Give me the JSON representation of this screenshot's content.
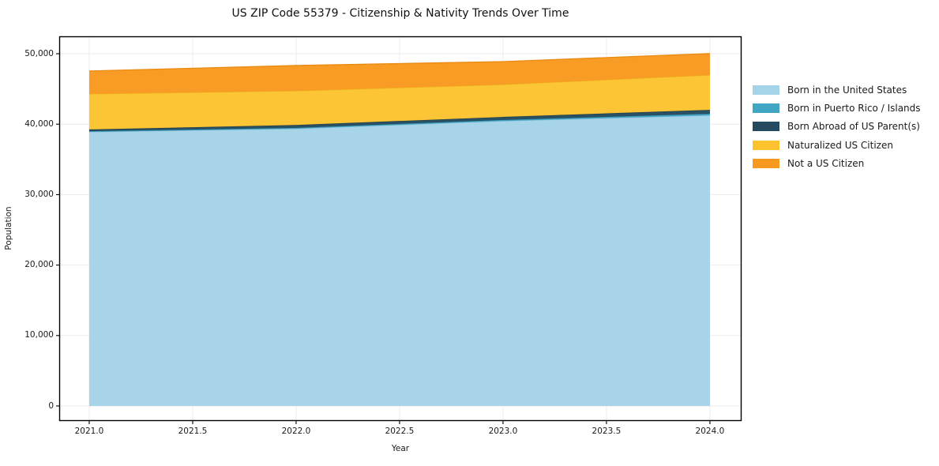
{
  "title": "US ZIP Code 55379 - Citizenship & Nativity Trends Over Time",
  "colors": {
    "background": "#ffffff",
    "grid": "#ebebeb",
    "spine": "#000000",
    "tick": "#000000",
    "text": "#1a1a1a"
  },
  "chart_data": {
    "type": "area",
    "stacked": true,
    "title": "US ZIP Code 55379 - Citizenship & Nativity Trends Over Time",
    "xlabel": "Year",
    "ylabel": "Population",
    "x": [
      2021,
      2022,
      2023,
      2024
    ],
    "series": [
      {
        "name": "Born in the United States",
        "color": "#a5d3e8",
        "edge": "#8fc2dc",
        "values": [
          38900,
          39350,
          40450,
          41250
        ]
      },
      {
        "name": "Born in Puerto Rico / Islands",
        "color": "#41a6c4",
        "edge": "#3795b2",
        "values": [
          100,
          130,
          150,
          230
        ]
      },
      {
        "name": "Born Abroad of US Parent(s)",
        "color": "#234a5e",
        "edge": "#1d3f50",
        "values": [
          250,
          400,
          430,
          550
        ]
      },
      {
        "name": "Naturalized US Citizen",
        "color": "#fcc32f",
        "edge": "#efb321",
        "values": [
          5050,
          4850,
          4600,
          4950
        ]
      },
      {
        "name": "Not a US Citizen",
        "color": "#f8991f",
        "edge": "#e98a12",
        "values": [
          3250,
          3600,
          3250,
          3050
        ]
      }
    ],
    "xlim": [
      2020.855,
      2024.153
    ],
    "ylim": [
      -2130,
      52470
    ],
    "xticks": [
      2021.0,
      2021.5,
      2022.0,
      2022.5,
      2023.0,
      2023.5,
      2024.0
    ],
    "xtick_labels": [
      "2021.0",
      "2021.5",
      "2022.0",
      "2022.5",
      "2023.0",
      "2023.5",
      "2024.0"
    ],
    "yticks": [
      0,
      10000,
      20000,
      30000,
      40000,
      50000
    ],
    "ytick_labels": [
      "0",
      "10,000",
      "20,000",
      "30,000",
      "40,000",
      "50,000"
    ],
    "grid": true,
    "legend_position": "right"
  }
}
